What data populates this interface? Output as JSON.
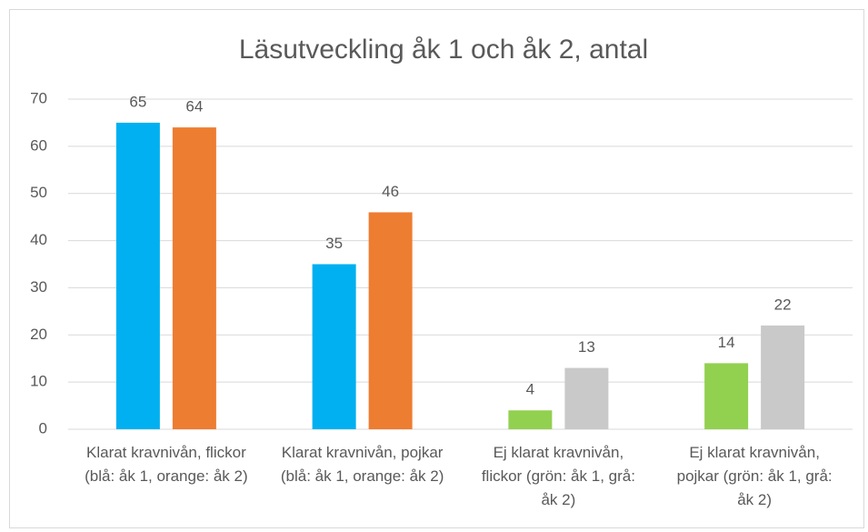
{
  "chart_data": {
    "type": "bar",
    "title": "Läsutveckling åk 1 och åk 2, antal",
    "categories": [
      "Klarat kravnivån, flickor (blå: åk 1, orange: åk 2)",
      "Klarat kravnivån, pojkar (blå: åk 1, orange: åk 2)",
      "Ej klarat kravnivån, flickor (grön: åk 1, grå: åk 2)",
      "Ej klarat kravnivån, pojkar (grön: åk 1, grå: åk 2)"
    ],
    "series": [
      {
        "values": [
          65,
          35,
          4,
          14
        ],
        "colors": [
          "#00b0f0",
          "#00b0f0",
          "#92d050",
          "#92d050"
        ]
      },
      {
        "values": [
          64,
          46,
          13,
          22
        ],
        "colors": [
          "#ed7d31",
          "#ed7d31",
          "#c9c9c9",
          "#c9c9c9"
        ]
      }
    ],
    "ylim": [
      0,
      70
    ],
    "yticks": [
      0,
      10,
      20,
      30,
      40,
      50,
      60,
      70
    ],
    "grid": true
  }
}
